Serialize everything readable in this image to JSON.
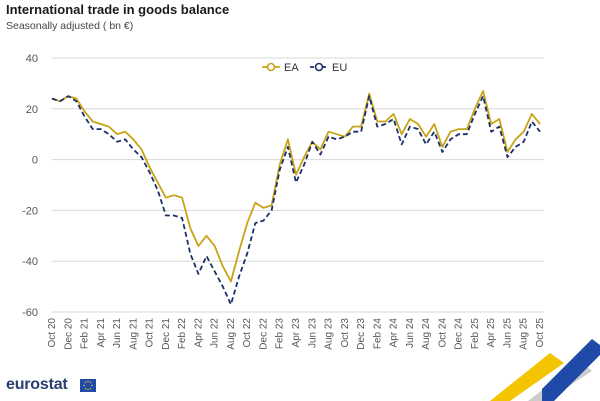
{
  "header": {
    "title": "International trade in goods balance",
    "subtitle": "Seasonally adjusted ( bn €)"
  },
  "logo": {
    "text": "eurostat"
  },
  "colors": {
    "ea": "#c8a415",
    "eu": "#1b2f6b",
    "grid": "#d9d9d9",
    "axis": "#555555"
  },
  "chart_data": {
    "type": "line",
    "title": "International trade in goods balance",
    "subtitle": "Seasonally adjusted ( bn €)",
    "xlabel": "",
    "ylabel": "",
    "ylim": [
      -60,
      40
    ],
    "yticks": [
      40,
      20,
      0,
      -20,
      -40,
      -60
    ],
    "grid": true,
    "legend": "top-center",
    "x": [
      "Oct 20",
      "Nov 20",
      "Dec 20",
      "Jan 21",
      "Feb 21",
      "Mar 21",
      "Apr 21",
      "May 21",
      "Jun 21",
      "Jul 21",
      "Aug 21",
      "Sep 21",
      "Oct 21",
      "Nov 21",
      "Dec 21",
      "Jan 22",
      "Feb 22",
      "Mar 22",
      "Apr 22",
      "May 22",
      "Jun 22",
      "Jul 22",
      "Aug 22",
      "Sep 22",
      "Oct 22",
      "Nov 22",
      "Dec 22",
      "Jan 23",
      "Feb 23",
      "Mar 23",
      "Apr 23",
      "May 23",
      "Jun 23",
      "Jul 23",
      "Aug 23",
      "Sep 23",
      "Oct 23",
      "Nov 23",
      "Dec 23",
      "Jan 24",
      "Feb 24",
      "Mar 24",
      "Apr 24",
      "May 24",
      "Jun 24",
      "Jul 24",
      "Aug 24",
      "Sep 24",
      "Oct 24",
      "Nov 24",
      "Dec 24",
      "Jan 25",
      "Feb 25",
      "Mar 25",
      "Apr 25",
      "May 25",
      "Jun 25",
      "Jul 25",
      "Aug 25",
      "Sep 25",
      "Oct 25"
    ],
    "xticks": [
      "Oct 20",
      "Dec 20",
      "Feb 21",
      "Apr 21",
      "Jun 21",
      "Aug 21",
      "Oct 21",
      "Dec 21",
      "Feb 22",
      "Apr 22",
      "Jun 22",
      "Aug 22",
      "Oct 22",
      "Dec 22",
      "Feb 23",
      "Apr 23",
      "Jun 23",
      "Aug 23",
      "Oct 23",
      "Dec 23",
      "Feb 24",
      "Apr 24",
      "Jun 24",
      "Aug 24",
      "Oct 24",
      "Dec 24",
      "Feb 25",
      "Apr 25",
      "Jun 25",
      "Aug 25",
      "Oct 25"
    ],
    "series": [
      {
        "name": "EA",
        "color": "#c8a415",
        "dash": "solid",
        "values": [
          24,
          23,
          25,
          24,
          19,
          15,
          14,
          13,
          10,
          11,
          8,
          4,
          -3,
          -9,
          -15,
          -14,
          -15,
          -27,
          -34,
          -30,
          -34,
          -42,
          -48,
          -36,
          -25,
          -17,
          -19,
          -18,
          -2,
          8,
          -6,
          1,
          7,
          4,
          11,
          10,
          9,
          13,
          13,
          26,
          15,
          15,
          18,
          10,
          16,
          14,
          9,
          14,
          5,
          11,
          12,
          12,
          20,
          27,
          14,
          16,
          3,
          8,
          11,
          18,
          14
        ]
      },
      {
        "name": "EU",
        "color": "#1b2f6b",
        "dash": "dashed",
        "values": [
          24,
          23,
          25,
          23,
          17,
          12,
          12,
          10,
          7,
          8,
          4,
          1,
          -5,
          -12,
          -22,
          -22,
          -23,
          -37,
          -45,
          -38,
          -44,
          -50,
          -57,
          -46,
          -37,
          -25,
          -24,
          -20,
          -4,
          5,
          -9,
          -2,
          7,
          2,
          9,
          8,
          9,
          11,
          11,
          25,
          13,
          14,
          16,
          6,
          13,
          12,
          6,
          11,
          3,
          8,
          10,
          10,
          18,
          25,
          11,
          13,
          1,
          5,
          7,
          15,
          11
        ]
      }
    ]
  }
}
